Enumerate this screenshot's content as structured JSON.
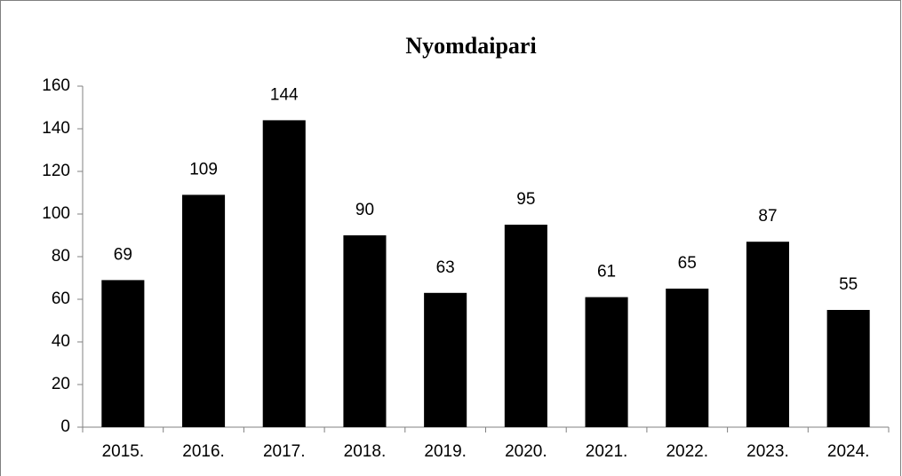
{
  "chart_data": {
    "type": "bar",
    "title": "Nyomdaipari",
    "categories": [
      "2015.",
      "2016.",
      "2017.",
      "2018.",
      "2019.",
      "2020.",
      "2021.",
      "2022.",
      "2023.",
      "2024."
    ],
    "values": [
      69,
      109,
      144,
      90,
      63,
      95,
      61,
      65,
      87,
      55
    ],
    "color": "#000000",
    "ylim": [
      0,
      160
    ],
    "yticks": [
      0,
      20,
      40,
      60,
      80,
      100,
      120,
      140,
      160
    ],
    "grid": false
  }
}
